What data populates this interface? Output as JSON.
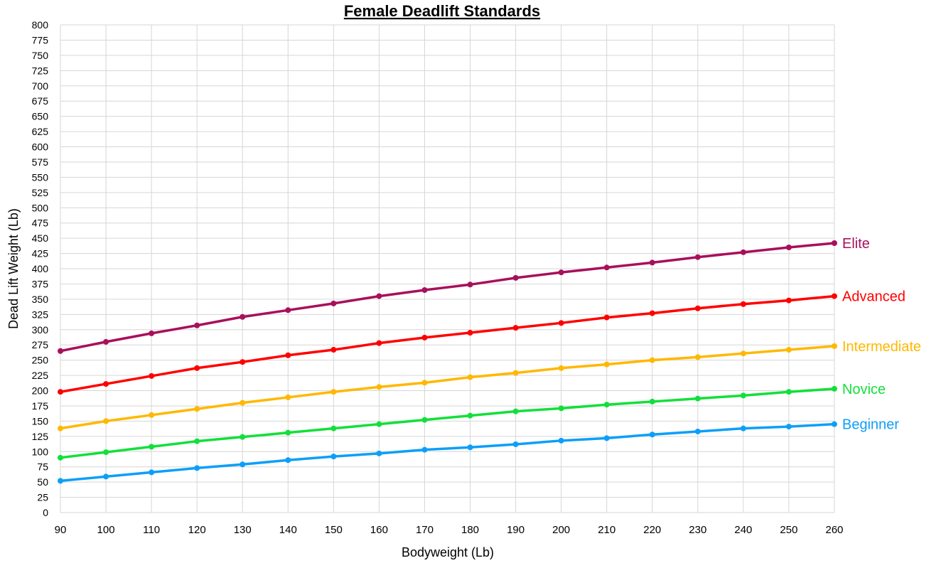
{
  "chart_data": {
    "type": "line",
    "title": "Female Deadlift Standards",
    "xlabel": "Bodyweight (Lb)",
    "ylabel": "Dead Lift Weight (Lb)",
    "xlim": [
      90,
      260
    ],
    "ylim": [
      0,
      800
    ],
    "x_ticks": [
      90,
      100,
      110,
      120,
      130,
      140,
      150,
      160,
      170,
      180,
      190,
      200,
      210,
      220,
      230,
      240,
      250,
      260
    ],
    "y_ticks": [
      0,
      25,
      50,
      75,
      100,
      125,
      150,
      175,
      200,
      225,
      250,
      275,
      300,
      325,
      350,
      375,
      400,
      425,
      450,
      475,
      500,
      525,
      550,
      575,
      600,
      625,
      650,
      675,
      700,
      725,
      750,
      775,
      800
    ],
    "grid": true,
    "legend": "inline labels at right end of each line",
    "x": [
      90,
      100,
      110,
      120,
      130,
      140,
      150,
      160,
      170,
      180,
      190,
      200,
      210,
      220,
      230,
      240,
      250,
      260
    ],
    "series": [
      {
        "name": "Elite",
        "color": "#a8105c",
        "values": [
          265,
          280,
          294,
          307,
          321,
          332,
          343,
          355,
          365,
          374,
          385,
          394,
          402,
          410,
          419,
          427,
          435,
          442
        ]
      },
      {
        "name": "Advanced",
        "color": "#ff0000",
        "values": [
          198,
          211,
          224,
          237,
          247,
          258,
          267,
          278,
          287,
          295,
          303,
          311,
          320,
          327,
          335,
          342,
          348,
          355
        ]
      },
      {
        "name": "Intermediate",
        "color": "#ffb800",
        "values": [
          138,
          150,
          160,
          170,
          180,
          189,
          198,
          206,
          213,
          222,
          229,
          237,
          243,
          250,
          255,
          261,
          267,
          273
        ]
      },
      {
        "name": "Novice",
        "color": "#12e03a",
        "values": [
          90,
          99,
          108,
          117,
          124,
          131,
          138,
          145,
          152,
          159,
          166,
          171,
          177,
          182,
          187,
          192,
          198,
          203
        ]
      },
      {
        "name": "Beginner",
        "color": "#0d9ff7",
        "values": [
          52,
          59,
          66,
          73,
          79,
          86,
          92,
          97,
          103,
          107,
          112,
          118,
          122,
          128,
          133,
          138,
          141,
          145
        ]
      }
    ]
  }
}
